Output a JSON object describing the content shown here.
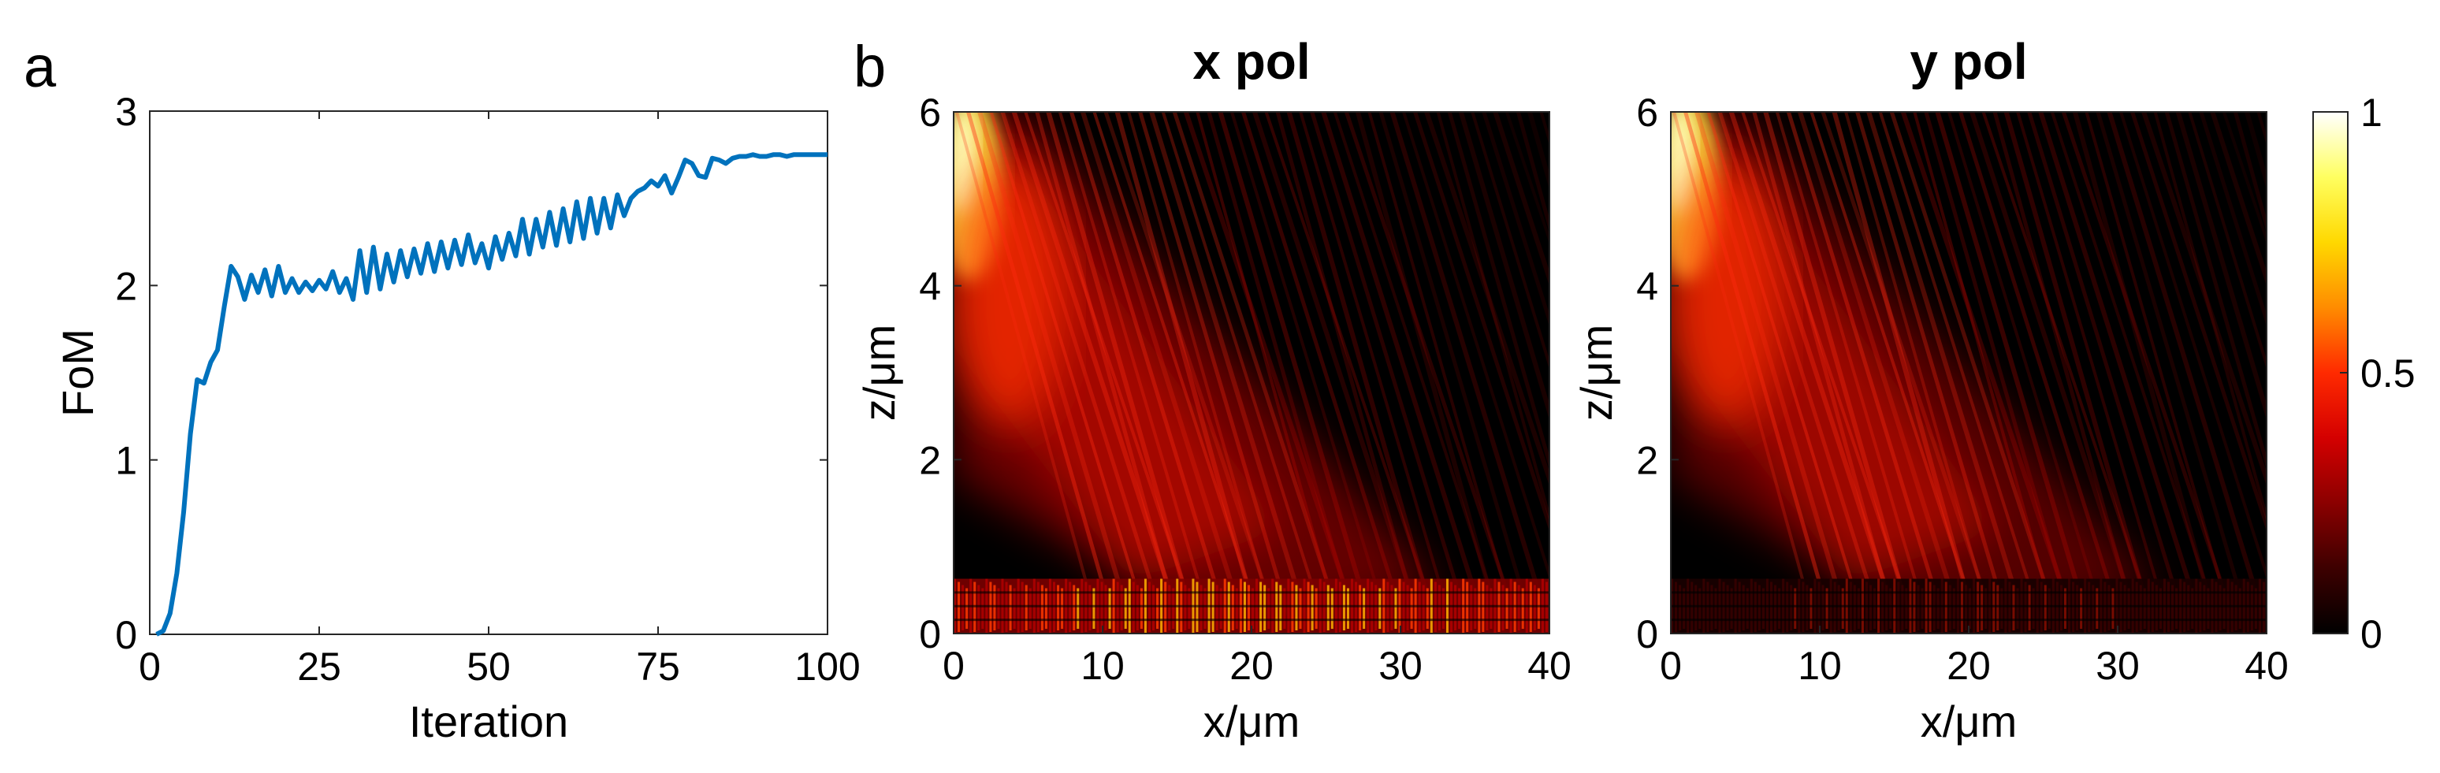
{
  "panel_labels": [
    "a",
    "b"
  ],
  "colors": {
    "line": "#0072BD",
    "axis": "#262626",
    "colormap": [
      "#000000",
      "#3d0000",
      "#8b0000",
      "#d40000",
      "#ff2a00",
      "#ff8c00",
      "#ffd800",
      "#ffff60",
      "#ffffff"
    ]
  },
  "chart_data": [
    {
      "type": "line",
      "panel": "a",
      "title": "",
      "xlabel": "Iteration",
      "ylabel": "FoM",
      "xlim": [
        0,
        100
      ],
      "ylim": [
        0,
        3
      ],
      "xticks": [
        0,
        25,
        50,
        75,
        100
      ],
      "yticks": [
        0,
        1,
        2,
        3
      ],
      "grid": false,
      "series": [
        {
          "x": [
            1,
            2,
            3,
            4,
            5,
            6,
            7,
            8,
            9,
            10,
            11,
            12,
            13,
            14,
            15,
            16,
            17,
            18,
            19,
            20,
            21,
            22,
            23,
            24,
            25,
            26,
            27,
            28,
            29,
            30,
            31,
            32,
            33,
            34,
            35,
            36,
            37,
            38,
            39,
            40,
            41,
            42,
            43,
            44,
            45,
            46,
            47,
            48,
            49,
            50,
            51,
            52,
            53,
            54,
            55,
            56,
            57,
            58,
            59,
            60,
            61,
            62,
            63,
            64,
            65,
            66,
            67,
            68,
            69,
            70,
            71,
            72,
            73,
            74,
            75,
            76,
            77,
            78,
            79,
            80,
            81,
            82,
            83,
            84,
            85,
            86,
            87,
            88,
            89,
            90,
            91,
            92,
            93,
            94,
            95,
            96,
            97,
            98,
            99,
            100
          ],
          "y": [
            0,
            0.02,
            0.12,
            0.35,
            0.7,
            1.15,
            1.46,
            1.44,
            1.56,
            1.63,
            1.88,
            2.11,
            2.05,
            1.92,
            2.06,
            1.96,
            2.09,
            1.94,
            2.11,
            1.96,
            2.04,
            1.96,
            2.02,
            1.97,
            2.03,
            1.98,
            2.08,
            1.96,
            2.04,
            1.92,
            2.2,
            1.96,
            2.22,
            1.98,
            2.18,
            2.02,
            2.2,
            2.05,
            2.21,
            2.07,
            2.24,
            2.08,
            2.25,
            2.1,
            2.26,
            2.12,
            2.29,
            2.13,
            2.24,
            2.1,
            2.28,
            2.15,
            2.3,
            2.17,
            2.38,
            2.18,
            2.38,
            2.22,
            2.42,
            2.23,
            2.44,
            2.25,
            2.48,
            2.27,
            2.5,
            2.3,
            2.5,
            2.33,
            2.52,
            2.4,
            2.5,
            2.54,
            2.56,
            2.6,
            2.57,
            2.63,
            2.53,
            2.62,
            2.72,
            2.7,
            2.63,
            2.62,
            2.73,
            2.72,
            2.7,
            2.73,
            2.74,
            2.74,
            2.75,
            2.74,
            2.74,
            2.75,
            2.75,
            2.74,
            2.75,
            2.75,
            2.75,
            2.75,
            2.75,
            2.75
          ]
        }
      ]
    },
    {
      "type": "heatmap",
      "panel": "b",
      "title": "x pol",
      "xlabel": "x/μm",
      "ylabel": "z/μm",
      "xlim": [
        0,
        40
      ],
      "ylim": [
        0,
        6
      ],
      "xticks": [
        0,
        10,
        20,
        30,
        40
      ],
      "yticks": [
        0,
        2,
        4,
        6
      ],
      "clim": [
        0,
        1
      ]
    },
    {
      "type": "heatmap",
      "panel": "b",
      "title": "y pol",
      "xlabel": "x/μm",
      "ylabel": "z/μm",
      "xlim": [
        0,
        40
      ],
      "ylim": [
        0,
        6
      ],
      "xticks": [
        0,
        10,
        20,
        30,
        40
      ],
      "yticks": [
        0,
        2,
        4,
        6
      ],
      "clim": [
        0,
        1
      ],
      "colorbar": {
        "ticks": [
          0,
          0.5,
          1
        ]
      }
    }
  ]
}
